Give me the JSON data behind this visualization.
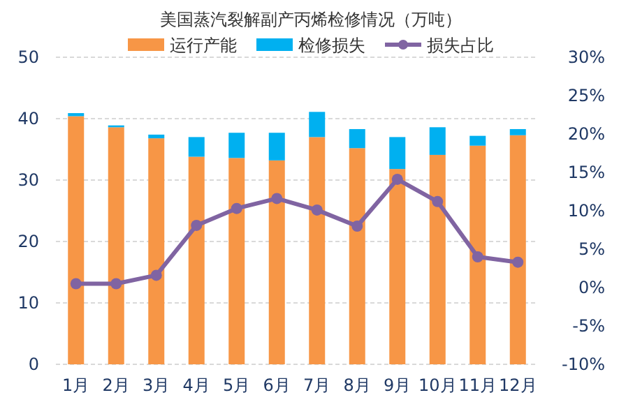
{
  "chart_data": {
    "type": "bar",
    "title": "美国蒸汽裂解副产丙烯检修情况（万吨）",
    "categories": [
      "1月",
      "2月",
      "3月",
      "4月",
      "5月",
      "6月",
      "7月",
      "8月",
      "9月",
      "10月",
      "11月",
      "12月"
    ],
    "stacked": true,
    "series": [
      {
        "name": "运行产能",
        "color": "#f79646",
        "values": [
          40.4,
          38.6,
          36.8,
          33.8,
          33.6,
          33.2,
          37.0,
          35.2,
          31.8,
          34.1,
          35.6,
          37.3
        ]
      },
      {
        "name": "检修损失",
        "color": "#00b0f0",
        "values": [
          0.5,
          0.3,
          0.6,
          3.2,
          4.1,
          4.5,
          4.1,
          3.1,
          5.2,
          4.5,
          1.6,
          1.0
        ]
      },
      {
        "name": "损失占比",
        "type": "line",
        "axis": "y2",
        "color": "#8064a2",
        "marker": "circle",
        "values": [
          0.5,
          0.5,
          1.6,
          8.1,
          10.3,
          11.6,
          10.1,
          8.0,
          14.1,
          11.2,
          4.0,
          3.3
        ]
      }
    ],
    "ylim": [
      0,
      50
    ],
    "yticks": [
      0,
      10,
      20,
      30,
      40,
      50
    ],
    "y2lim": [
      -10,
      30
    ],
    "y2ticks": [
      {
        "value": -10,
        "label": "-10%"
      },
      {
        "value": -5,
        "label": "-5%"
      },
      {
        "value": 0,
        "label": "0%"
      },
      {
        "value": 5,
        "label": "5%"
      },
      {
        "value": 10,
        "label": "10%"
      },
      {
        "value": 15,
        "label": "15%"
      },
      {
        "value": 20,
        "label": "20%"
      },
      {
        "value": 25,
        "label": "25%"
      },
      {
        "value": 30,
        "label": "30%"
      }
    ],
    "grid": "y",
    "legend": "top"
  }
}
